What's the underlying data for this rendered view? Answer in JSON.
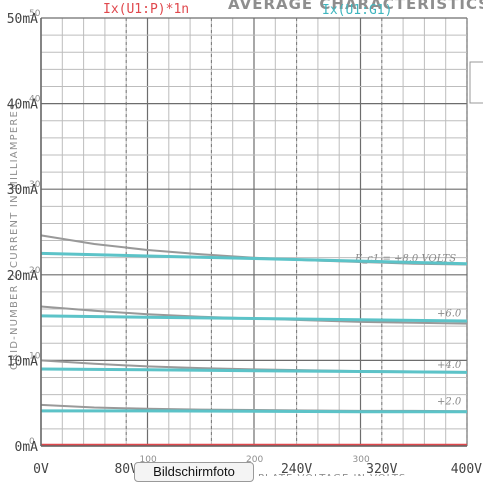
{
  "chart_data": {
    "type": "line",
    "title_series": [
      "Ix(U1:P)*1n",
      "Ix(U1:G1)"
    ],
    "background_title": "AVERAGE CHARACTERISTICS",
    "background_ylabel": "GRID-NUMBER 2 CURRENT IN MILLIAMPERES",
    "background_xlabel": "PLATE VOLTAGE IN VOLTS",
    "x_ticks": [
      "0V",
      "80V",
      "160V",
      "240V",
      "320V",
      "400V"
    ],
    "y_ticks": [
      "0mA",
      "10mA",
      "20mA",
      "30mA",
      "40mA",
      "50mA"
    ],
    "xlim": [
      0,
      400
    ],
    "ylim": [
      0,
      50
    ],
    "background_x_ticks": [
      "100",
      "200",
      "300"
    ],
    "background_y_ticks": [
      "0",
      "10",
      "20",
      "30",
      "40",
      "50"
    ],
    "curve_labels": [
      "E_c1 = +8.0 VOLTS",
      "+6.0",
      "+4.0",
      "+2.0"
    ],
    "series": [
      {
        "color": "#e0484d",
        "x": [
          0,
          400
        ],
        "y": [
          0.15,
          0.15
        ]
      },
      {
        "color": "#5cc3c8",
        "x": [
          0,
          100,
          200,
          300,
          400
        ],
        "y": [
          22.5,
          22.2,
          21.9,
          21.6,
          21.3
        ]
      },
      {
        "color": "#5cc3c8",
        "x": [
          0,
          100,
          200,
          300,
          400
        ],
        "y": [
          15.2,
          15.05,
          14.9,
          14.75,
          14.6
        ]
      },
      {
        "color": "#5cc3c8",
        "x": [
          0,
          100,
          200,
          300,
          400
        ],
        "y": [
          9.0,
          8.9,
          8.8,
          8.7,
          8.6
        ]
      },
      {
        "color": "#5cc3c8",
        "x": [
          0,
          100,
          200,
          300,
          400
        ],
        "y": [
          4.1,
          4.1,
          4.05,
          4.0,
          4.0
        ]
      }
    ],
    "background_curves": [
      {
        "color": "#999999",
        "x": [
          0,
          50,
          100,
          150,
          200,
          250,
          300,
          350,
          400
        ],
        "y": [
          24.6,
          23.6,
          22.9,
          22.4,
          22.0,
          21.7,
          21.5,
          21.3,
          21.2
        ]
      },
      {
        "color": "#999999",
        "x": [
          0,
          50,
          100,
          150,
          200,
          250,
          300,
          350,
          400
        ],
        "y": [
          16.3,
          15.8,
          15.4,
          15.1,
          14.9,
          14.7,
          14.5,
          14.4,
          14.3
        ]
      },
      {
        "color": "#999999",
        "x": [
          0,
          50,
          100,
          150,
          200,
          250,
          300,
          350,
          400
        ],
        "y": [
          10.0,
          9.6,
          9.3,
          9.1,
          8.95,
          8.85,
          8.75,
          8.7,
          8.65
        ]
      },
      {
        "color": "#999999",
        "x": [
          0,
          50,
          100,
          150,
          200,
          250,
          300,
          350,
          400
        ],
        "y": [
          4.8,
          4.5,
          4.35,
          4.25,
          4.2,
          4.15,
          4.1,
          4.1,
          4.05
        ]
      }
    ],
    "grid": true,
    "legend": "top"
  },
  "overlay_badge": "Bildschirmfoto"
}
